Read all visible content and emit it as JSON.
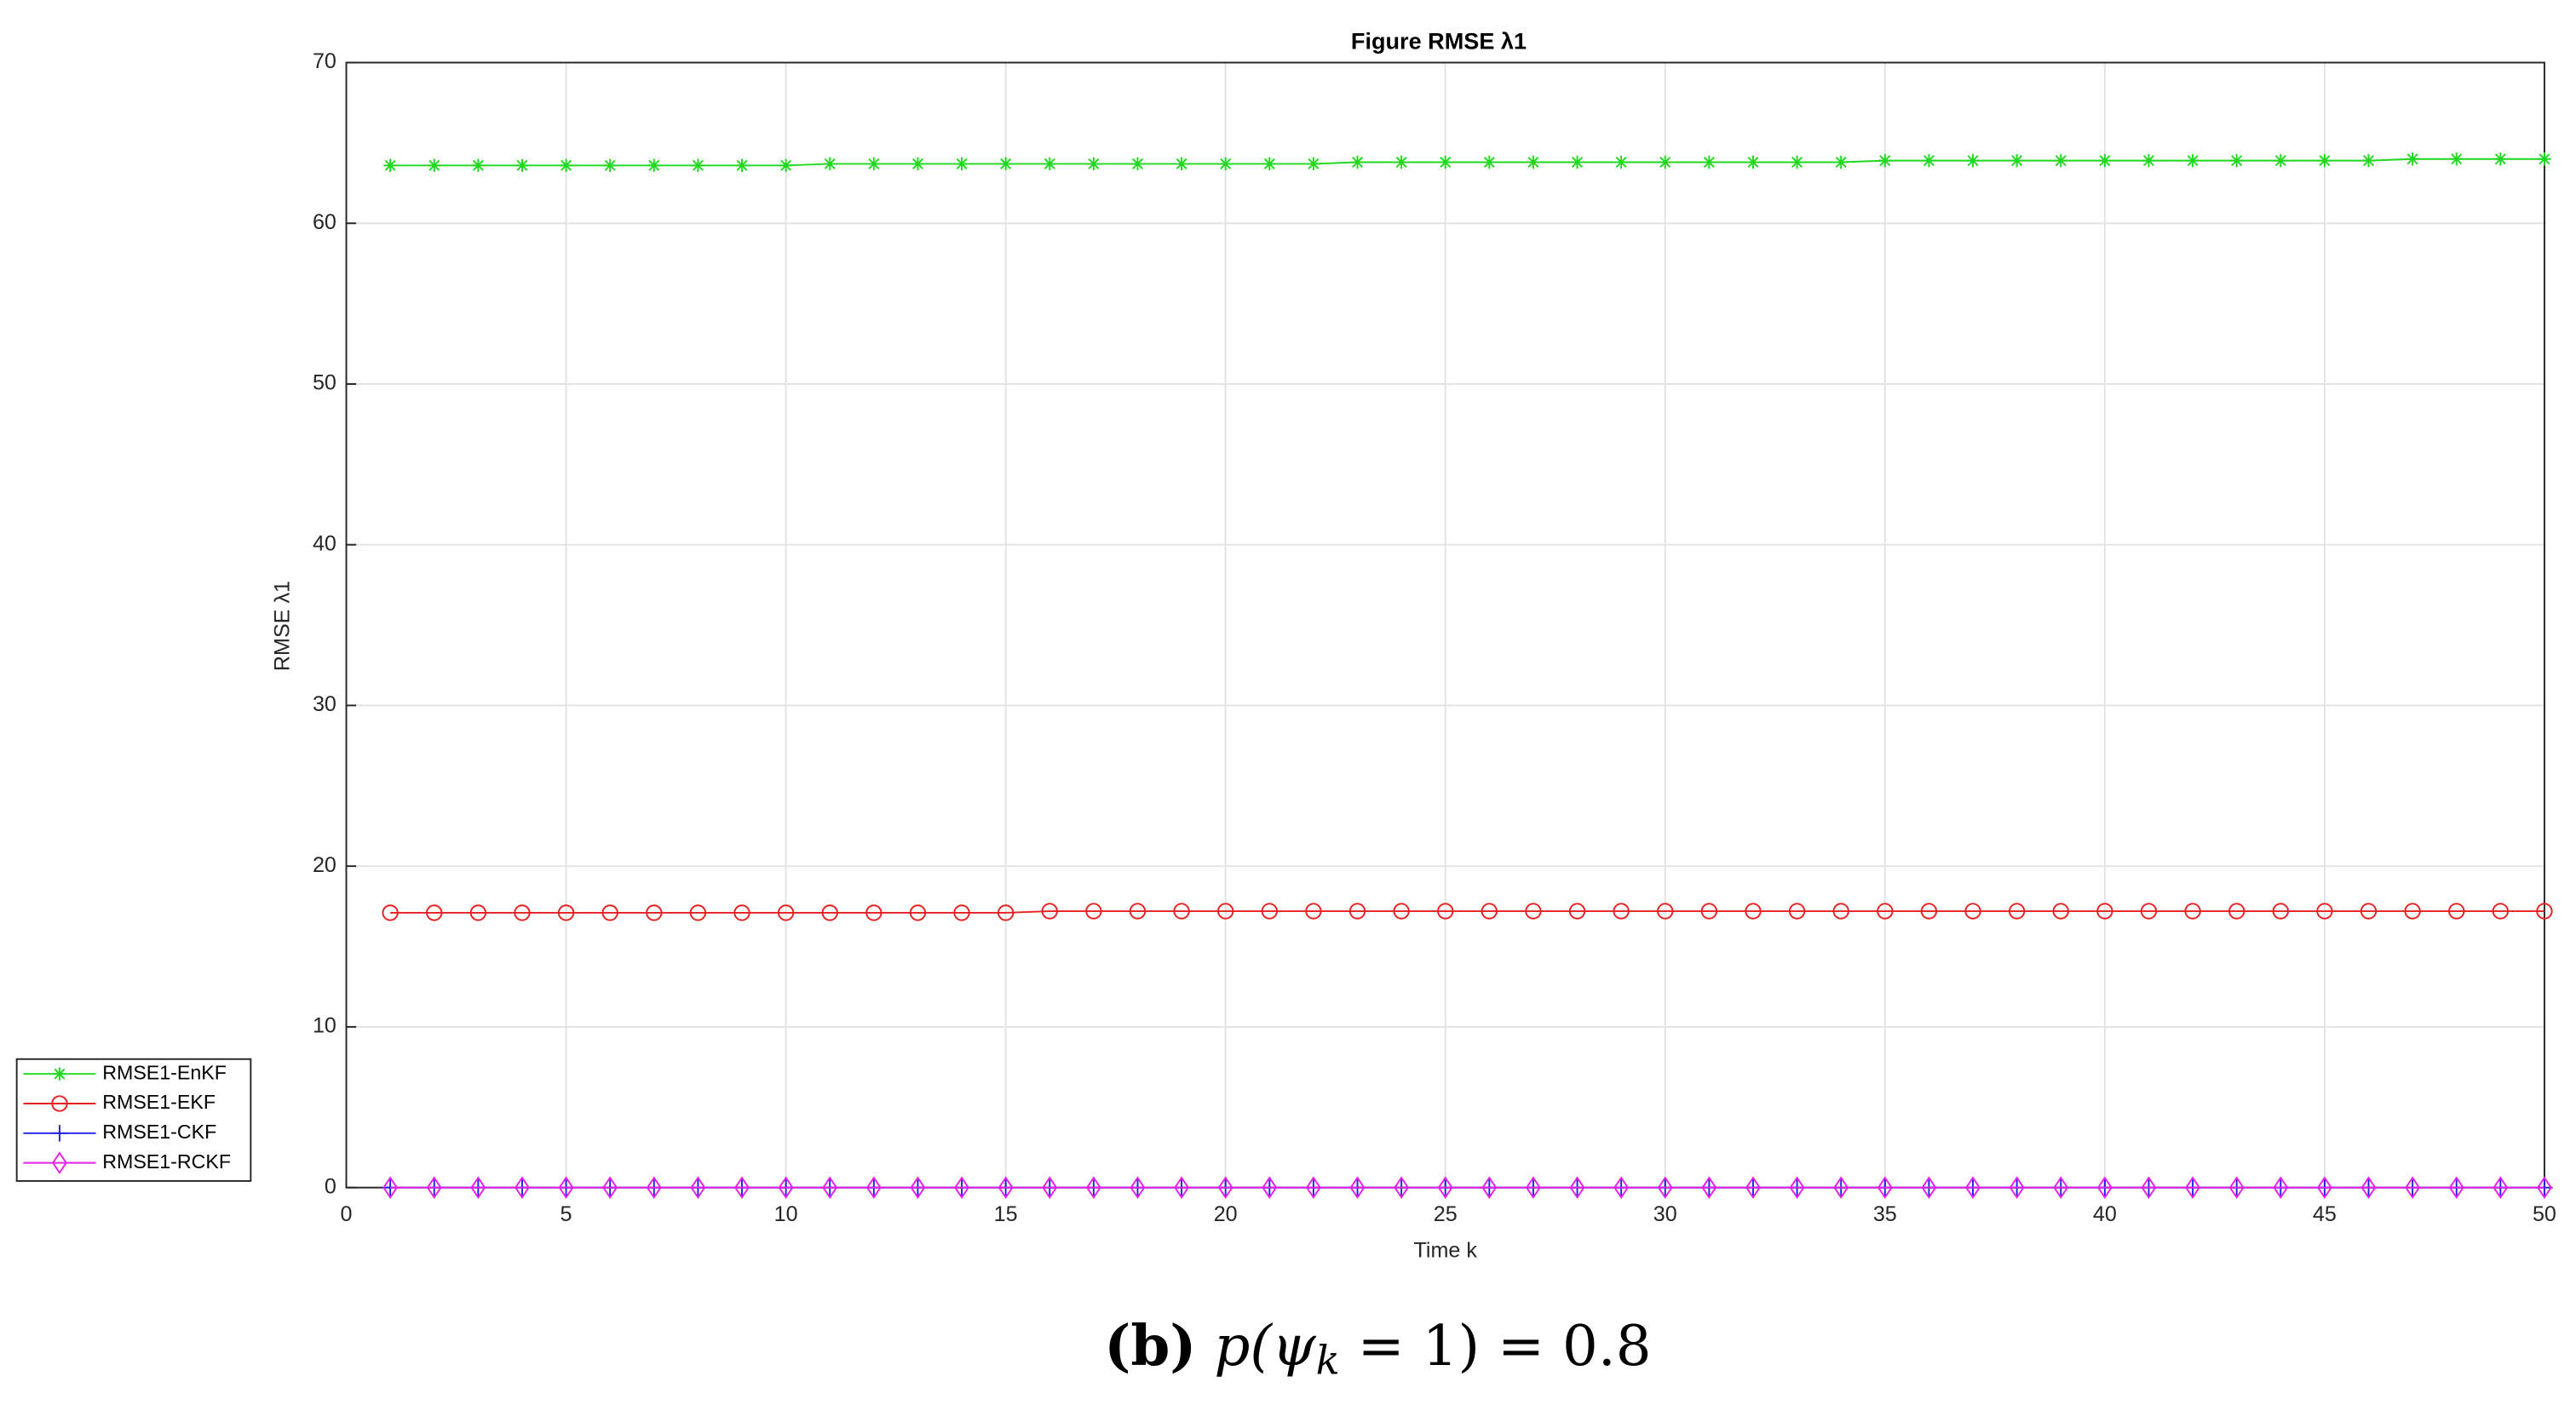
{
  "chart_data": {
    "type": "line",
    "title": "Figure RMSE  λ1",
    "x_label": "Time k",
    "y_label": "RMSE  λ1",
    "x": [
      1,
      2,
      3,
      4,
      5,
      6,
      7,
      8,
      9,
      10,
      11,
      12,
      13,
      14,
      15,
      16,
      17,
      18,
      19,
      20,
      21,
      22,
      23,
      24,
      25,
      26,
      27,
      28,
      29,
      30,
      31,
      32,
      33,
      34,
      35,
      36,
      37,
      38,
      39,
      40,
      41,
      42,
      43,
      44,
      45,
      46,
      47,
      48,
      49,
      50
    ],
    "series": [
      {
        "name": "RMSE1-EnKF",
        "color": "#1fd81f",
        "marker": "asterisk",
        "values": [
          63.6,
          63.6,
          63.6,
          63.6,
          63.6,
          63.6,
          63.6,
          63.6,
          63.6,
          63.6,
          63.7,
          63.7,
          63.7,
          63.7,
          63.7,
          63.7,
          63.7,
          63.7,
          63.7,
          63.7,
          63.7,
          63.7,
          63.8,
          63.8,
          63.8,
          63.8,
          63.8,
          63.8,
          63.8,
          63.8,
          63.8,
          63.8,
          63.8,
          63.8,
          63.9,
          63.9,
          63.9,
          63.9,
          63.9,
          63.9,
          63.9,
          63.9,
          63.9,
          63.9,
          63.9,
          63.9,
          64.0,
          64.0,
          64.0,
          64.0
        ]
      },
      {
        "name": "RMSE1-EKF",
        "color": "#e82020",
        "marker": "circle",
        "values": [
          17.1,
          17.1,
          17.1,
          17.1,
          17.1,
          17.1,
          17.1,
          17.1,
          17.1,
          17.1,
          17.1,
          17.1,
          17.1,
          17.1,
          17.1,
          17.2,
          17.2,
          17.2,
          17.2,
          17.2,
          17.2,
          17.2,
          17.2,
          17.2,
          17.2,
          17.2,
          17.2,
          17.2,
          17.2,
          17.2,
          17.2,
          17.2,
          17.2,
          17.2,
          17.2,
          17.2,
          17.2,
          17.2,
          17.2,
          17.2,
          17.2,
          17.2,
          17.2,
          17.2,
          17.2,
          17.2,
          17.2,
          17.2,
          17.2,
          17.2
        ]
      },
      {
        "name": "RMSE1-CKF",
        "color": "#2020e8",
        "marker": "plus",
        "values": [
          0,
          0,
          0,
          0,
          0,
          0,
          0,
          0,
          0,
          0,
          0,
          0,
          0,
          0,
          0,
          0,
          0,
          0,
          0,
          0,
          0,
          0,
          0,
          0,
          0,
          0,
          0,
          0,
          0,
          0,
          0,
          0,
          0,
          0,
          0,
          0,
          0,
          0,
          0,
          0,
          0,
          0,
          0,
          0,
          0,
          0,
          0,
          0,
          0,
          0
        ]
      },
      {
        "name": "RMSE1-RCKF",
        "color": "#e820e8",
        "marker": "diamond",
        "values": [
          0,
          0,
          0,
          0,
          0,
          0,
          0,
          0,
          0,
          0,
          0,
          0,
          0,
          0,
          0,
          0,
          0,
          0,
          0,
          0,
          0,
          0,
          0,
          0,
          0,
          0,
          0,
          0,
          0,
          0,
          0,
          0,
          0,
          0,
          0,
          0,
          0,
          0,
          0,
          0,
          0,
          0,
          0,
          0,
          0,
          0,
          0,
          0,
          0,
          0
        ]
      }
    ],
    "xlim": [
      0,
      50
    ],
    "xticks": [
      0,
      5,
      10,
      15,
      20,
      25,
      30,
      35,
      40,
      45,
      50
    ],
    "ylim": [
      0,
      70
    ],
    "yticks": [
      0,
      10,
      20,
      30,
      40,
      50,
      60,
      70
    ],
    "grid": true,
    "legend": "outside-lower-left"
  },
  "caption": {
    "label": "(b)",
    "math": [
      "p(ψ",
      "k",
      " = 1) = 0.8"
    ]
  }
}
